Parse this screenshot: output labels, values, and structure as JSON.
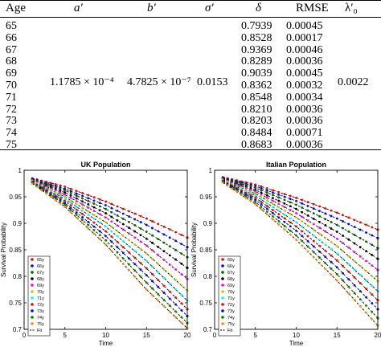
{
  "table": {
    "headers": {
      "age": "Age",
      "a": "a′",
      "b": "b′",
      "sigma": "σ′",
      "delta": "δ",
      "rmse": "RMSE",
      "lambda": "λ′₀"
    },
    "rows": [
      {
        "age": "65",
        "delta": "0.7939",
        "rmse": "0.00045"
      },
      {
        "age": "66",
        "delta": "0.8528",
        "rmse": "0.00017"
      },
      {
        "age": "67",
        "delta": "0.9369",
        "rmse": "0.00046"
      },
      {
        "age": "68",
        "delta": "0.8289",
        "rmse": "0.00036"
      },
      {
        "age": "69",
        "delta": "0.9039",
        "rmse": "0.00045"
      },
      {
        "age": "70",
        "delta": "0.8362",
        "rmse": "0.00032"
      },
      {
        "age": "71",
        "delta": "0.8548",
        "rmse": "0.00034"
      },
      {
        "age": "72",
        "delta": "0.8210",
        "rmse": "0.00036"
      },
      {
        "age": "73",
        "delta": "0.8203",
        "rmse": "0.00036"
      },
      {
        "age": "74",
        "delta": "0.8484",
        "rmse": "0.00071"
      },
      {
        "age": "75",
        "delta": "0.8683",
        "rmse": "0.00036"
      }
    ],
    "shared": {
      "a": "1.1785 × 10⁻⁴",
      "b": "4.7825 × 10⁻⁷",
      "sigma": "0.0153",
      "lambda": "0.0022"
    }
  },
  "chart_data": [
    {
      "type": "line",
      "title": "UK Population",
      "xlabel": "Time",
      "ylabel": "Survival Probability",
      "xlim": [
        0,
        20
      ],
      "ylim": [
        0.7,
        1.0
      ],
      "xticks": [
        "0",
        "5",
        "10",
        "15",
        "20"
      ],
      "yticks": [
        "0.7",
        "0.75",
        "0.8",
        "0.85",
        "0.9",
        "0.95",
        "1"
      ],
      "legend": [
        "65y",
        "66y",
        "67y",
        "68y",
        "69y",
        "70y",
        "71y",
        "72y",
        "73y",
        "74y",
        "75y",
        "Fit"
      ],
      "legend_position": "bottom-left",
      "series_colors": [
        "#ff0000",
        "#0000ff",
        "#006400",
        "#000000",
        "#ff00ff",
        "#c8c800",
        "#00ffff",
        "#ff0000",
        "#0000ff",
        "#008000",
        "#ff8c00"
      ],
      "series": [
        {
          "name": "65y",
          "x": [
            1,
            5,
            10,
            15,
            20
          ],
          "y": [
            0.985,
            0.969,
            0.941,
            0.909,
            0.873
          ]
        },
        {
          "name": "66y",
          "x": [
            1,
            5,
            10,
            15,
            20
          ],
          "y": [
            0.984,
            0.965,
            0.934,
            0.897,
            0.855
          ]
        },
        {
          "name": "67y",
          "x": [
            1,
            5,
            10,
            15,
            20
          ],
          "y": [
            0.983,
            0.962,
            0.927,
            0.884,
            0.836
          ]
        },
        {
          "name": "68y",
          "x": [
            1,
            5,
            10,
            15,
            20
          ],
          "y": [
            0.982,
            0.958,
            0.919,
            0.871,
            0.816
          ]
        },
        {
          "name": "69y",
          "x": [
            1,
            5,
            10,
            15,
            20
          ],
          "y": [
            0.981,
            0.954,
            0.911,
            0.858,
            0.795
          ]
        },
        {
          "name": "70y",
          "x": [
            1,
            5,
            10,
            15,
            20
          ],
          "y": [
            0.98,
            0.95,
            0.902,
            0.843,
            0.773
          ]
        },
        {
          "name": "71y",
          "x": [
            1,
            5,
            10,
            15,
            20
          ],
          "y": [
            0.979,
            0.946,
            0.894,
            0.829,
            0.754
          ]
        },
        {
          "name": "72y",
          "x": [
            1,
            5,
            10,
            15,
            20
          ],
          "y": [
            0.978,
            0.942,
            0.885,
            0.815,
            0.738
          ]
        },
        {
          "name": "73y",
          "x": [
            1,
            5,
            10,
            15,
            20
          ],
          "y": [
            0.977,
            0.938,
            0.876,
            0.802,
            0.725
          ]
        },
        {
          "name": "74y",
          "x": [
            1,
            5,
            10,
            15,
            20
          ],
          "y": [
            0.976,
            0.935,
            0.868,
            0.788,
            0.712
          ]
        },
        {
          "name": "75y",
          "x": [
            1,
            5,
            10,
            15,
            20
          ],
          "y": [
            0.975,
            0.931,
            0.86,
            0.775,
            0.702
          ]
        }
      ]
    },
    {
      "type": "line",
      "title": "Italian Population",
      "xlabel": "Time",
      "ylabel": "Survival Probability",
      "xlim": [
        0,
        20
      ],
      "ylim": [
        0.7,
        1.0
      ],
      "xticks": [
        "0",
        "5",
        "10",
        "15",
        "20"
      ],
      "yticks": [
        "0.7",
        "0.75",
        "0.8",
        "0.85",
        "0.9",
        "0.95",
        "1"
      ],
      "legend": [
        "65y",
        "66y",
        "67y",
        "68y",
        "69y",
        "70y",
        "71y",
        "72y",
        "73y",
        "74y",
        "75y",
        "Fit"
      ],
      "legend_position": "bottom-left",
      "series_colors": [
        "#ff0000",
        "#0000ff",
        "#006400",
        "#000000",
        "#ff00ff",
        "#c8c800",
        "#00ffff",
        "#ff0000",
        "#0000ff",
        "#008000",
        "#ff8c00"
      ],
      "series": [
        {
          "name": "65y",
          "x": [
            1,
            5,
            10,
            15,
            20
          ],
          "y": [
            0.987,
            0.973,
            0.948,
            0.92,
            0.888
          ]
        },
        {
          "name": "66y",
          "x": [
            1,
            5,
            10,
            15,
            20
          ],
          "y": [
            0.986,
            0.97,
            0.942,
            0.909,
            0.872
          ]
        },
        {
          "name": "67y",
          "x": [
            1,
            5,
            10,
            15,
            20
          ],
          "y": [
            0.985,
            0.967,
            0.935,
            0.897,
            0.853
          ]
        },
        {
          "name": "68y",
          "x": [
            1,
            5,
            10,
            15,
            20
          ],
          "y": [
            0.984,
            0.963,
            0.927,
            0.884,
            0.833
          ]
        },
        {
          "name": "69y",
          "x": [
            1,
            5,
            10,
            15,
            20
          ],
          "y": [
            0.983,
            0.96,
            0.919,
            0.871,
            0.812
          ]
        },
        {
          "name": "70y",
          "x": [
            1,
            5,
            10,
            15,
            20
          ],
          "y": [
            0.982,
            0.956,
            0.911,
            0.857,
            0.791
          ]
        },
        {
          "name": "71y",
          "x": [
            1,
            5,
            10,
            15,
            20
          ],
          "y": [
            0.981,
            0.952,
            0.902,
            0.843,
            0.772
          ]
        },
        {
          "name": "72y",
          "x": [
            1,
            5,
            10,
            15,
            20
          ],
          "y": [
            0.98,
            0.948,
            0.894,
            0.83,
            0.755
          ]
        },
        {
          "name": "73y",
          "x": [
            1,
            5,
            10,
            15,
            20
          ],
          "y": [
            0.979,
            0.944,
            0.886,
            0.817,
            0.738
          ]
        },
        {
          "name": "74y",
          "x": [
            1,
            5,
            10,
            15,
            20
          ],
          "y": [
            0.978,
            0.94,
            0.877,
            0.804,
            0.721
          ]
        },
        {
          "name": "75y",
          "x": [
            1,
            5,
            10,
            15,
            20
          ],
          "y": [
            0.977,
            0.936,
            0.869,
            0.792,
            0.707
          ]
        }
      ]
    }
  ]
}
